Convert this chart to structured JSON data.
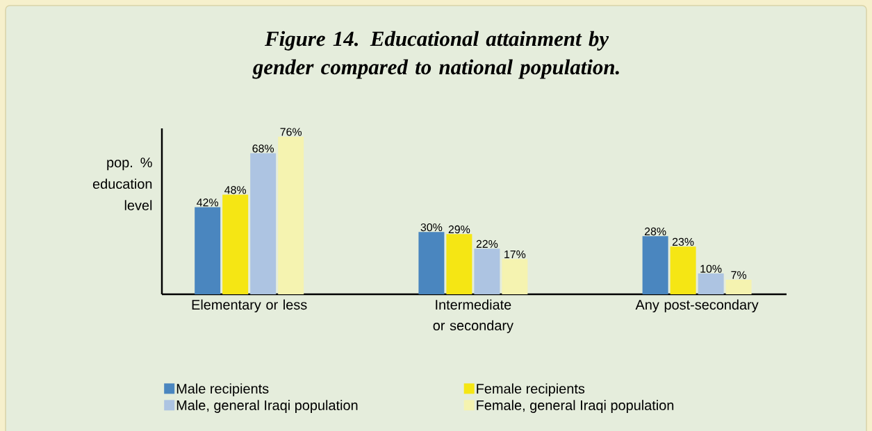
{
  "chart_data": {
    "type": "bar",
    "title": "Figure 14. Educational attainment by gender compared to national population.",
    "ylabel": "pop. % education level",
    "categories": [
      "Elementary or less",
      "Intermediate or secondary",
      "Any post-secondary"
    ],
    "ylim": [
      0,
      80
    ],
    "legend": "bottom",
    "series": [
      {
        "name": "Male recipients",
        "color": "#4a86bf",
        "values": [
          42,
          30,
          28
        ],
        "value_labels": [
          "42%",
          "30%",
          "28%"
        ]
      },
      {
        "name": "Female recipients",
        "color": "#f5e614",
        "values": [
          48,
          29,
          23
        ],
        "value_labels": [
          "48%",
          "29%",
          "23%"
        ]
      },
      {
        "name": "Male, general Iraqi population",
        "color": "#adc4e2",
        "values": [
          68,
          22,
          10
        ],
        "value_labels": [
          "68%",
          "22%",
          "10%"
        ]
      },
      {
        "name": "Female, general Iraqi population",
        "color": "#f5f3b0",
        "values": [
          76,
          17,
          7
        ],
        "value_labels": [
          "76%",
          "17%",
          "7%"
        ]
      }
    ]
  }
}
